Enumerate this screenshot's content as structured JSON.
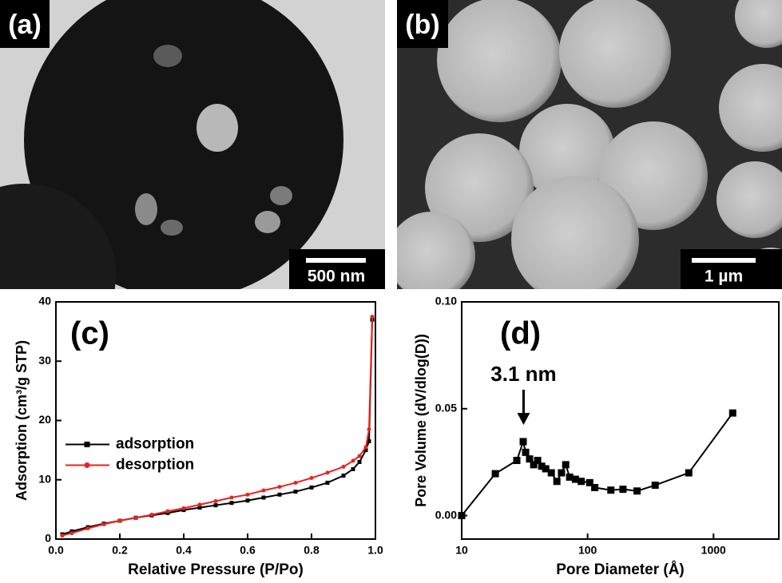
{
  "images": [
    {
      "label": "(a)",
      "scale_bar": "500 nm"
    },
    {
      "label": "(b)",
      "scale_bar": "1 µm"
    }
  ],
  "chart_data": [
    {
      "type": "line",
      "panel": "(c)",
      "x_label": "Relative Pressure (P/Po)",
      "y_label": "Adsorption (cm³/g STP)",
      "x": [
        0.02,
        0.05,
        0.1,
        0.15,
        0.2,
        0.25,
        0.3,
        0.35,
        0.4,
        0.45,
        0.5,
        0.55,
        0.6,
        0.65,
        0.7,
        0.75,
        0.8,
        0.85,
        0.9,
        0.93,
        0.95,
        0.97,
        0.98,
        0.99
      ],
      "series": [
        {
          "name": "adsorption",
          "color": "#000000",
          "marker": "square",
          "values": [
            0.8,
            1.3,
            2.0,
            2.6,
            3.1,
            3.6,
            4.0,
            4.4,
            4.9,
            5.3,
            5.7,
            6.1,
            6.5,
            7.0,
            7.5,
            8.0,
            8.7,
            9.5,
            10.7,
            11.8,
            13,
            15,
            16.5,
            37
          ]
        },
        {
          "name": "desorption",
          "color": "#e8231f",
          "marker": "circle",
          "values": [
            0.6,
            1.0,
            1.8,
            2.5,
            3.1,
            3.6,
            4.1,
            4.7,
            5.2,
            5.8,
            6.4,
            7.0,
            7.5,
            8.2,
            8.8,
            9.5,
            10.3,
            11.2,
            12.2,
            13.2,
            14,
            15.5,
            18.5,
            37.5
          ]
        }
      ],
      "xlim": [
        0,
        1
      ],
      "ylim": [
        0,
        40
      ],
      "xticks": [
        {
          "value": 0,
          "label": "0.0"
        },
        0.2,
        0.4,
        0.6,
        0.8,
        {
          "value": 1,
          "label": "1.0"
        }
      ],
      "yticks": [
        0,
        10,
        20,
        30,
        40
      ],
      "legend": "center left"
    },
    {
      "type": "line",
      "panel": "(d)",
      "log_x": true,
      "x_label": "Pore Diameter (Å)",
      "y_label": "Pore Volume (dV/dlog(D))",
      "annotation": {
        "text": "3.1 nm",
        "x": 31
      },
      "x": [
        10,
        18.5,
        27.4,
        30.8,
        32.2,
        34.6,
        37.3,
        40.1,
        43.2,
        46.5,
        51.5,
        57,
        62,
        67,
        72,
        80,
        89,
        104,
        114,
        153,
        191,
        247,
        344,
        636,
        1420
      ],
      "series": [
        {
          "color": "#000000",
          "marker": "square",
          "values": [
            0.0,
            0.0196,
            0.0258,
            0.0346,
            0.0296,
            0.0265,
            0.0238,
            0.0258,
            0.0231,
            0.0219,
            0.02,
            0.016,
            0.02,
            0.0238,
            0.018,
            0.017,
            0.016,
            0.0154,
            0.0131,
            0.0119,
            0.0123,
            0.0115,
            0.0142,
            0.02,
            0.048
          ]
        }
      ],
      "xlim": [
        10,
        3300
      ],
      "ylim": [
        -0.011,
        0.1
      ],
      "xticks": [
        10,
        100,
        1000
      ],
      "yticks": [
        {
          "value": 0,
          "label": "0.00"
        },
        {
          "value": 0.05,
          "label": "0.05"
        },
        {
          "value": 0.1,
          "label": "0.10"
        }
      ]
    }
  ]
}
